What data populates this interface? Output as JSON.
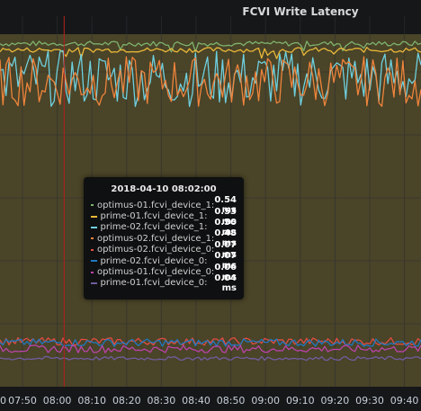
{
  "panel": {
    "title": "FCVI Write Latency"
  },
  "colors": {
    "background": "#161719",
    "plot_fill": "#4a4428",
    "grid": "#2e3033",
    "crosshair": "#b32020"
  },
  "chart_data": {
    "type": "line",
    "x_tick_labels": [
      "07:50",
      "08:00",
      "08:10",
      "08:20",
      "08:30",
      "08:40",
      "08:50",
      "09:00",
      "09:10",
      "09:20",
      "09:30",
      "09:40"
    ],
    "x_leading_partial_label": "0",
    "hover_time": "08:02:00",
    "series": [
      {
        "name": "optimus-01.fcvi_device_1",
        "color": "#7eb26d",
        "hover_value": 0.54
      },
      {
        "name": "prime-01.fcvi_device_1",
        "color": "#eab839",
        "hover_value": 0.53
      },
      {
        "name": "prime-02.fcvi_device_1",
        "color": "#6ed0e0",
        "hover_value": 0.5
      },
      {
        "name": "optimus-02.fcvi_device_1",
        "color": "#ef843c",
        "hover_value": 0.48
      },
      {
        "name": "optimus-02.fcvi_device_0",
        "color": "#e24d42",
        "hover_value": 0.07
      },
      {
        "name": "prime-02.fcvi_device_0",
        "color": "#1f78c1",
        "hover_value": 0.07
      },
      {
        "name": "optimus-01.fcvi_device_0",
        "color": "#ba43a9",
        "hover_value": 0.06
      },
      {
        "name": "prime-01.fcvi_device_0",
        "color": "#705da0",
        "hover_value": 0.04
      }
    ]
  },
  "tooltip": {
    "title": "2018-04-10 08:02:00",
    "rows": [
      {
        "label": "optimus-01.fcvi_device_1:",
        "value": "0.54 ms",
        "color": "#7eb26d"
      },
      {
        "label": "prime-01.fcvi_device_1:",
        "value": "0.53 ms",
        "color": "#eab839"
      },
      {
        "label": "prime-02.fcvi_device_1:",
        "value": "0.50 ms",
        "color": "#6ed0e0"
      },
      {
        "label": "optimus-02.fcvi_device_1:",
        "value": "0.48 ms",
        "color": "#ef843c"
      },
      {
        "label": "optimus-02.fcvi_device_0:",
        "value": "0.07 ms",
        "color": "#e24d42"
      },
      {
        "label": "prime-02.fcvi_device_0:",
        "value": "0.07 ms",
        "color": "#1f78c1"
      },
      {
        "label": "optimus-01.fcvi_device_0:",
        "value": "0.06 ms",
        "color": "#ba43a9"
      },
      {
        "label": "prime-01.fcvi_device_0:",
        "value": "0.04 ms",
        "color": "#705da0"
      }
    ]
  }
}
